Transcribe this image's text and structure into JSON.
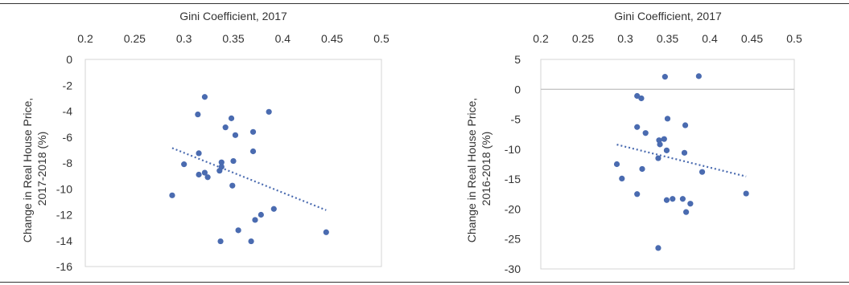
{
  "chart_data": [
    {
      "type": "scatter",
      "x_title": "Gini Coefficient, 2017",
      "y_title_lines": [
        "Change in Real House Price,",
        "2017-2018 (%)"
      ],
      "x_ticks": [
        "0.2",
        "0.25",
        "0.3",
        "0.35",
        "0.4",
        "0.45",
        "0.5"
      ],
      "y_ticks": [
        "0",
        "-2",
        "-4",
        "-6",
        "-8",
        "-10",
        "-12",
        "-14",
        "-16"
      ],
      "xlim": [
        0.2,
        0.5
      ],
      "ylim": [
        -16,
        0
      ],
      "x_axis_position": "top",
      "trendline": "linear",
      "point_color": "#4a6bb0",
      "points": [
        [
          0.321,
          -2.9
        ],
        [
          0.386,
          -4.05
        ],
        [
          0.314,
          -4.25
        ],
        [
          0.348,
          -4.55
        ],
        [
          0.342,
          -5.25
        ],
        [
          0.352,
          -5.85
        ],
        [
          0.37,
          -5.6
        ],
        [
          0.37,
          -7.1
        ],
        [
          0.315,
          -7.25
        ],
        [
          0.338,
          -7.95
        ],
        [
          0.35,
          -7.85
        ],
        [
          0.338,
          -8.3
        ],
        [
          0.3,
          -8.1
        ],
        [
          0.321,
          -8.75
        ],
        [
          0.315,
          -8.9
        ],
        [
          0.336,
          -8.6
        ],
        [
          0.324,
          -9.1
        ],
        [
          0.349,
          -9.75
        ],
        [
          0.288,
          -10.5
        ],
        [
          0.391,
          -11.55
        ],
        [
          0.378,
          -12.0
        ],
        [
          0.372,
          -12.4
        ],
        [
          0.355,
          -13.2
        ],
        [
          0.444,
          -13.35
        ],
        [
          0.337,
          -14.05
        ],
        [
          0.368,
          -14.05
        ]
      ]
    },
    {
      "type": "scatter",
      "x_title": "Gini Coefficient, 2017",
      "y_title_lines": [
        "Change in Real House Price,",
        "2016-2018 (%)"
      ],
      "x_ticks": [
        "0.2",
        "0.25",
        "0.3",
        "0.35",
        "0.4",
        "0.45",
        "0.5"
      ],
      "y_ticks": [
        "5",
        "0",
        "-5",
        "-10",
        "-15",
        "-20",
        "-25",
        "-30"
      ],
      "xlim": [
        0.2,
        0.5
      ],
      "ylim": [
        -30,
        5
      ],
      "x_axis_position": "top",
      "trendline": "linear",
      "point_color": "#4a6bb0",
      "points": [
        [
          0.347,
          2.1
        ],
        [
          0.387,
          2.2
        ],
        [
          0.314,
          -1.1
        ],
        [
          0.319,
          -1.5
        ],
        [
          0.35,
          -4.9
        ],
        [
          0.314,
          -6.3
        ],
        [
          0.371,
          -6.0
        ],
        [
          0.324,
          -7.3
        ],
        [
          0.34,
          -8.5
        ],
        [
          0.346,
          -8.3
        ],
        [
          0.341,
          -9.2
        ],
        [
          0.349,
          -10.2
        ],
        [
          0.37,
          -10.6
        ],
        [
          0.339,
          -11.5
        ],
        [
          0.29,
          -12.5
        ],
        [
          0.32,
          -13.3
        ],
        [
          0.391,
          -13.8
        ],
        [
          0.296,
          -14.9
        ],
        [
          0.314,
          -17.5
        ],
        [
          0.443,
          -17.4
        ],
        [
          0.349,
          -18.5
        ],
        [
          0.356,
          -18.3
        ],
        [
          0.368,
          -18.3
        ],
        [
          0.377,
          -19.1
        ],
        [
          0.372,
          -20.5
        ],
        [
          0.339,
          -26.5
        ]
      ]
    }
  ]
}
